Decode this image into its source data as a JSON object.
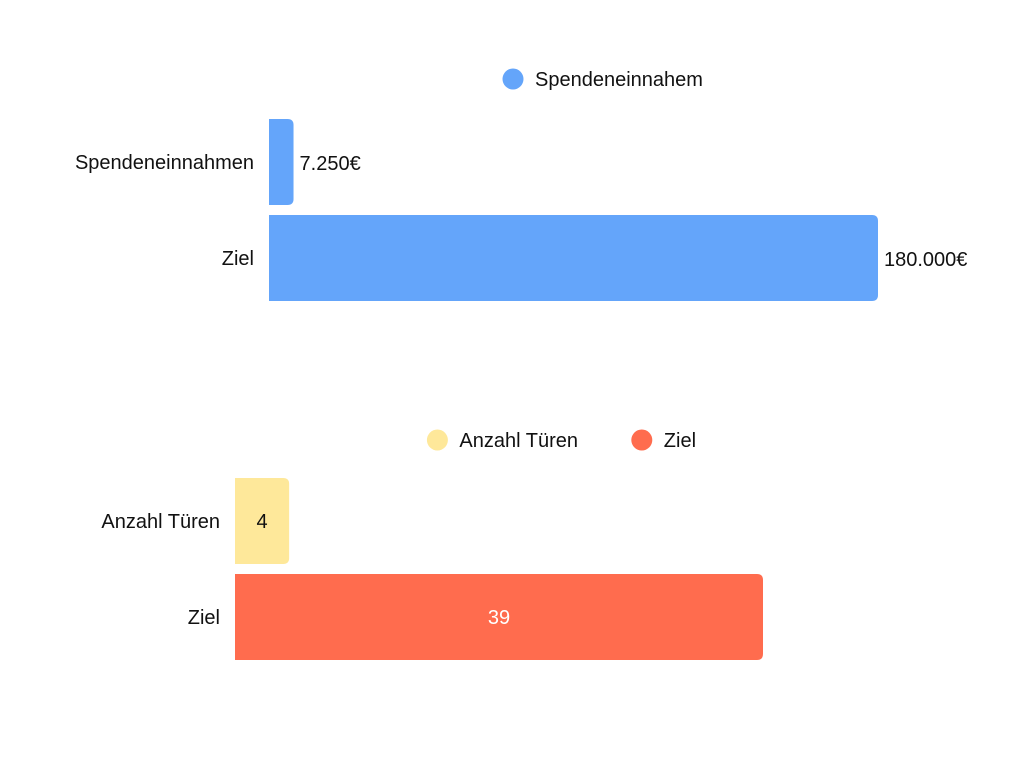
{
  "chart_data": [
    {
      "type": "bar",
      "orientation": "horizontal",
      "categories": [
        "Spendeneinnahmen",
        "Ziel"
      ],
      "series": [
        {
          "name": "Spendeneinnahem",
          "values": [
            7250,
            180000
          ],
          "labels": [
            "7.250€",
            "180.000€"
          ],
          "color": "#64A5FA"
        }
      ],
      "legend": {
        "placement": "top-center"
      },
      "label_position": "outside-end",
      "xlim": [
        0,
        180000
      ],
      "grid": false,
      "title": "",
      "xlabel": "",
      "ylabel": ""
    },
    {
      "type": "bar",
      "orientation": "horizontal",
      "categories": [
        "Anzahl Türen",
        "Ziel"
      ],
      "series": [
        {
          "name": "Anzahl Türen",
          "values": [
            4,
            null
          ],
          "labels": [
            "4",
            ""
          ],
          "color": "#FEE89A"
        },
        {
          "name": "Ziel",
          "values": [
            null,
            39
          ],
          "labels": [
            "",
            "39"
          ],
          "color": "#FF6C4E"
        }
      ],
      "legend": {
        "placement": "top-center"
      },
      "label_position": "inside-center",
      "xlim": [
        0,
        39
      ],
      "grid": false,
      "title": "",
      "xlabel": "",
      "ylabel": ""
    }
  ]
}
